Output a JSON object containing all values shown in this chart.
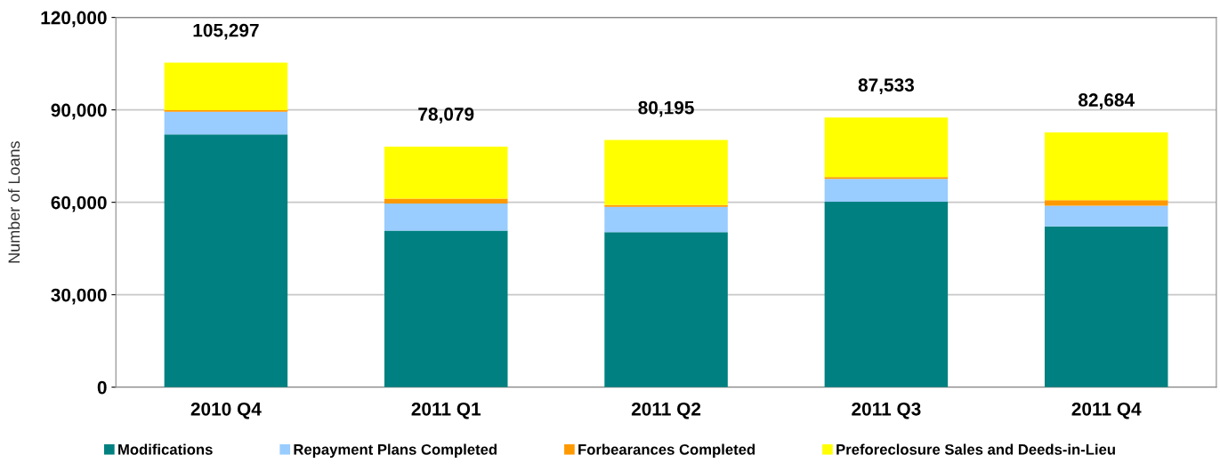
{
  "chart_data": {
    "type": "bar",
    "stacked": true,
    "ylabel": "Number of Loans",
    "categories": [
      "2010 Q4",
      "2011 Q1",
      "2011 Q2",
      "2011 Q3",
      "2011 Q4"
    ],
    "series": [
      {
        "name": "Modifications",
        "color": "#008080",
        "values": [
          82000,
          50800,
          50300,
          60200,
          52200
        ]
      },
      {
        "name": "Repayment Plans Completed",
        "color": "#99ccff",
        "values": [
          7400,
          8800,
          8200,
          7400,
          6700
        ]
      },
      {
        "name": "Forbearances Completed",
        "color": "#ff9900",
        "values": [
          500,
          1600,
          600,
          600,
          1800
        ]
      },
      {
        "name": "Preforeclosure Sales and Deeds-in-Lieu",
        "color": "#ffff00",
        "values": [
          15397,
          16879,
          21095,
          19333,
          21984
        ]
      }
    ],
    "totals": [
      "105,297",
      "78,079",
      "80,195",
      "87,533",
      "82,684"
    ],
    "ylim": [
      0,
      120000
    ],
    "yticks": [
      {
        "value": 0,
        "label": "0"
      },
      {
        "value": 30000,
        "label": "30,000"
      },
      {
        "value": 60000,
        "label": "60,000"
      },
      {
        "value": 90000,
        "label": "90,000"
      },
      {
        "value": 120000,
        "label": "120,000"
      }
    ],
    "grid": "y",
    "legend": "bottom"
  }
}
